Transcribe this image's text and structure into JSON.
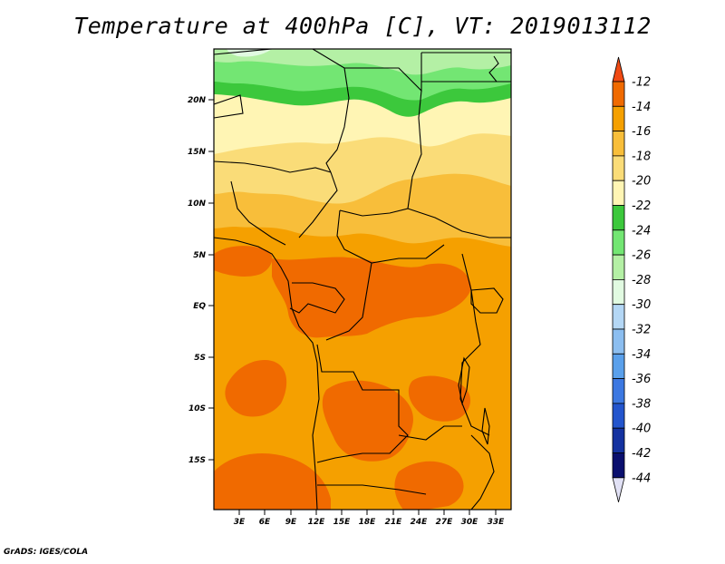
{
  "title": "Temperature at 400hPa [C], VT: 2019013112",
  "credit": "GrADS: IGES/COLA",
  "map": {
    "lat_labels": [
      "20N",
      "15N",
      "10N",
      "5N",
      "EQ",
      "5S",
      "10S",
      "15S"
    ],
    "lon_labels": [
      "3E",
      "6E",
      "9E",
      "12E",
      "15E",
      "18E",
      "21E",
      "24E",
      "27E",
      "30E",
      "33E"
    ]
  },
  "colorbar": {
    "labels": [
      "-12",
      "-14",
      "-16",
      "-18",
      "-20",
      "-22",
      "-24",
      "-26",
      "-28",
      "-30",
      "-32",
      "-34",
      "-36",
      "-38",
      "-40",
      "-42",
      "-44"
    ],
    "colors": [
      "#f04a14",
      "#f06a00",
      "#f5a000",
      "#f8be3a",
      "#fadc78",
      "#fff5b4",
      "#3cc83c",
      "#73e673",
      "#b4f0a5",
      "#e1fae1",
      "#b4d7f5",
      "#8cbef0",
      "#5aa0eb",
      "#3c78e1",
      "#2355cd",
      "#1432a0",
      "#0a0f6e",
      "#e1e1f5"
    ]
  },
  "legend_colors": {
    "land_orange": "#f5a000",
    "dark_orange": "#f06a00",
    "light_yellow": "#fff5b4",
    "yellow": "#fadc78",
    "bright_green": "#3cc83c",
    "light_green": "#73e673",
    "pale_green": "#b4f0a5"
  }
}
